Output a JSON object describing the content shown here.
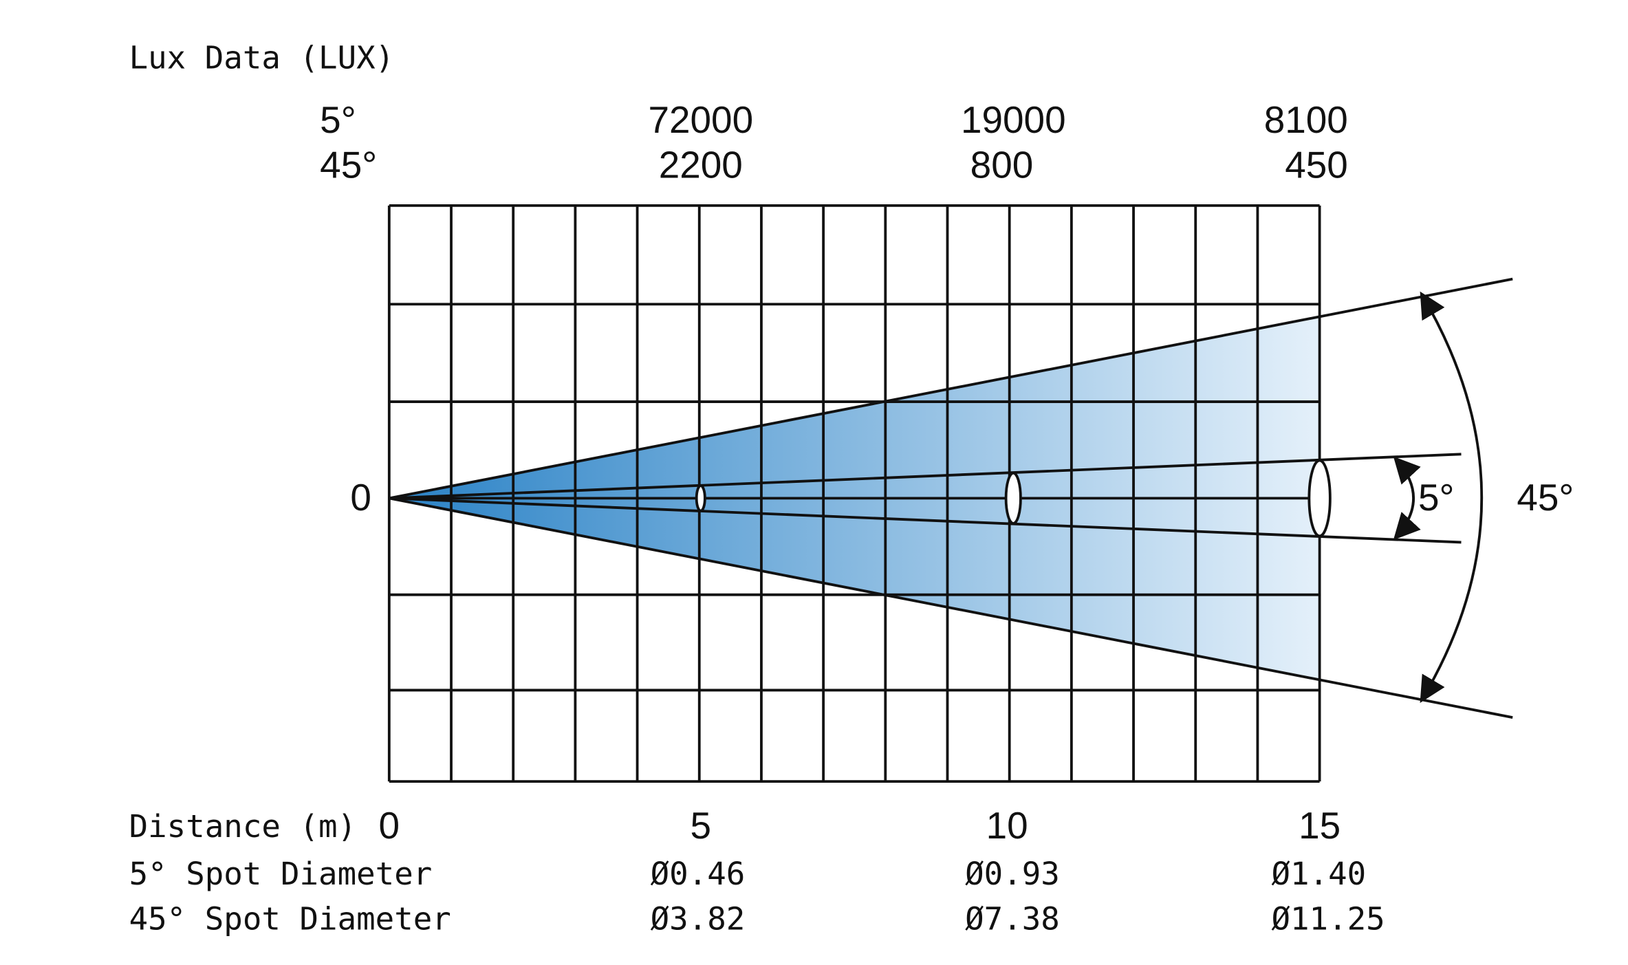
{
  "title": "Lux Data (LUX)",
  "lux": {
    "rows": [
      {
        "angle": "5°",
        "values": [
          "72000",
          "19000",
          "8100"
        ]
      },
      {
        "angle": "45°",
        "values": [
          "2200",
          "800",
          "450"
        ]
      }
    ]
  },
  "origin_label": "0",
  "distance": {
    "label": "Distance (m)",
    "values": [
      "0",
      "5",
      "10",
      "15"
    ]
  },
  "spot": [
    {
      "label": "5° Spot Diameter",
      "values": [
        "Ø0.46",
        "Ø0.93",
        "Ø1.40"
      ]
    },
    {
      "label": "45° Spot Diameter",
      "values": [
        "Ø3.82",
        "Ø7.38",
        "Ø11.25"
      ]
    }
  ],
  "beam_labels": [
    "5°",
    "45°"
  ]
}
